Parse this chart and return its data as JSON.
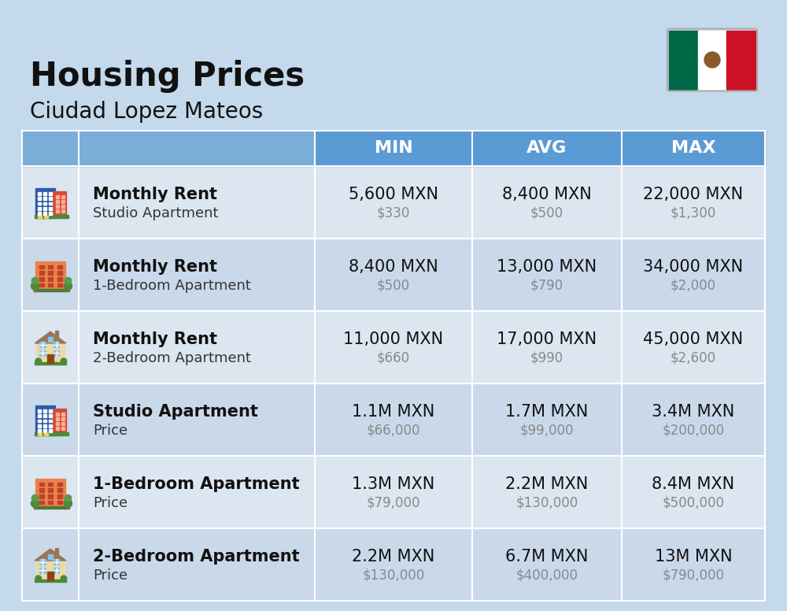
{
  "title": "Housing Prices",
  "subtitle": "Ciudad Lopez Mateos",
  "bg_color": "#c5d9ec",
  "header_bg": "#5b9bd5",
  "header_text_color": "#ffffff",
  "row_bg_even": "#dce6f1",
  "row_bg_odd": "#cad9ea",
  "col_headers": [
    "MIN",
    "AVG",
    "MAX"
  ],
  "rows": [
    {
      "label_bold": "Monthly Rent",
      "label_sub": "Studio Apartment",
      "min_main": "5,600 MXN",
      "min_sub": "$330",
      "avg_main": "8,400 MXN",
      "avg_sub": "$500",
      "max_main": "22,000 MXN",
      "max_sub": "$1,300",
      "icon": "studio_blue"
    },
    {
      "label_bold": "Monthly Rent",
      "label_sub": "1-Bedroom Apartment",
      "min_main": "8,400 MXN",
      "min_sub": "$500",
      "avg_main": "13,000 MXN",
      "avg_sub": "$790",
      "max_main": "34,000 MXN",
      "max_sub": "$2,000",
      "icon": "one_bed_orange"
    },
    {
      "label_bold": "Monthly Rent",
      "label_sub": "2-Bedroom Apartment",
      "min_main": "11,000 MXN",
      "min_sub": "$660",
      "avg_main": "17,000 MXN",
      "avg_sub": "$990",
      "max_main": "45,000 MXN",
      "max_sub": "$2,600",
      "icon": "two_bed_house"
    },
    {
      "label_bold": "Studio Apartment",
      "label_sub": "Price",
      "min_main": "1.1M MXN",
      "min_sub": "$66,000",
      "avg_main": "1.7M MXN",
      "avg_sub": "$99,000",
      "max_main": "3.4M MXN",
      "max_sub": "$200,000",
      "icon": "studio_blue"
    },
    {
      "label_bold": "1-Bedroom Apartment",
      "label_sub": "Price",
      "min_main": "1.3M MXN",
      "min_sub": "$79,000",
      "avg_main": "2.2M MXN",
      "avg_sub": "$130,000",
      "max_main": "8.4M MXN",
      "max_sub": "$500,000",
      "icon": "one_bed_orange"
    },
    {
      "label_bold": "2-Bedroom Apartment",
      "label_sub": "Price",
      "min_main": "2.2M MXN",
      "min_sub": "$130,000",
      "avg_main": "6.7M MXN",
      "avg_sub": "$400,000",
      "max_main": "13M MXN",
      "max_sub": "$790,000",
      "icon": "two_bed_house"
    }
  ]
}
